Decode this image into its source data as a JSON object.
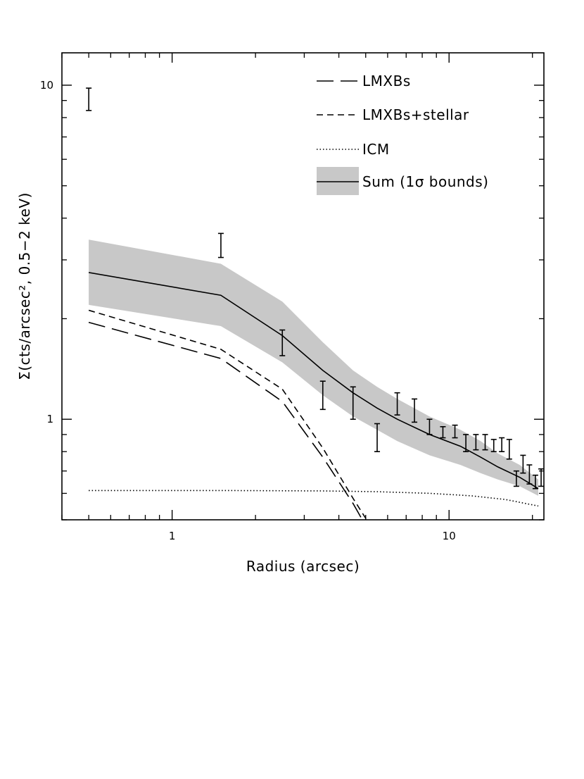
{
  "chart_data": {
    "type": "line",
    "xlabel": "Radius (arcsec)",
    "ylabel": "Σ(cts/arcsec², 0.5−2 keV)",
    "xscale": "log",
    "yscale": "log",
    "xlim": [
      0.4,
      22
    ],
    "ylim": [
      0.5,
      12.5
    ],
    "x_ticks": [
      {
        "value": 1,
        "label": "1"
      },
      {
        "value": 10,
        "label": "10"
      }
    ],
    "y_ticks": [
      {
        "value": 1,
        "label": "1"
      },
      {
        "value": 10,
        "label": "10"
      }
    ],
    "legend_position": "top-right",
    "series": [
      {
        "name": "LMXBs",
        "style": "long-dash",
        "x": [
          0.5,
          1.5,
          2.5,
          3.5,
          4.5,
          5.0
        ],
        "y": [
          1.95,
          1.52,
          1.13,
          0.77,
          0.56,
          0.48
        ]
      },
      {
        "name": "LMXBs+stellar",
        "style": "short-dash",
        "x": [
          0.5,
          1.5,
          2.5,
          3.5,
          4.5,
          5.2
        ],
        "y": [
          2.12,
          1.62,
          1.23,
          0.82,
          0.58,
          0.48
        ]
      },
      {
        "name": "ICM",
        "style": "dotted",
        "x": [
          0.5,
          1.5,
          3.5,
          5.5,
          8.5,
          12,
          16,
          21
        ],
        "y": [
          0.612,
          0.612,
          0.61,
          0.607,
          0.6,
          0.59,
          0.575,
          0.55
        ]
      },
      {
        "name": "Sum (1σ bounds)",
        "style": "solid",
        "x": [
          0.5,
          1.5,
          2.5,
          3.5,
          4.5,
          5.5,
          6.5,
          8.5,
          11,
          13,
          15,
          18,
          21
        ],
        "y": [
          2.75,
          2.35,
          1.78,
          1.4,
          1.2,
          1.08,
          1.0,
          0.9,
          0.83,
          0.77,
          0.72,
          0.67,
          0.62
        ],
        "band_lower": [
          2.2,
          1.9,
          1.48,
          1.18,
          1.02,
          0.93,
          0.86,
          0.78,
          0.73,
          0.69,
          0.66,
          0.63,
          0.59
        ],
        "band_upper": [
          3.45,
          2.92,
          2.25,
          1.7,
          1.4,
          1.25,
          1.15,
          1.02,
          0.93,
          0.86,
          0.79,
          0.73,
          0.66
        ]
      }
    ],
    "data_points": {
      "x": [
        0.5,
        1.5,
        2.5,
        3.5,
        4.5,
        5.5,
        6.5,
        7.5,
        8.5,
        9.5,
        10.5,
        11.5,
        12.5,
        13.5,
        14.5,
        15.5,
        16.5,
        17.5,
        18.5,
        19.5,
        20.5,
        21.5
      ],
      "y_low": [
        8.4,
        3.05,
        1.55,
        1.07,
        1.0,
        0.8,
        1.03,
        0.98,
        0.9,
        0.88,
        0.88,
        0.8,
        0.81,
        0.81,
        0.8,
        0.8,
        0.76,
        0.63,
        0.69,
        0.64,
        0.62,
        0.63
      ],
      "y_high": [
        9.8,
        3.6,
        1.85,
        1.3,
        1.25,
        0.97,
        1.2,
        1.15,
        1.0,
        0.95,
        0.96,
        0.9,
        0.9,
        0.9,
        0.87,
        0.88,
        0.87,
        0.7,
        0.78,
        0.73,
        0.68,
        0.71
      ]
    },
    "legend": [
      {
        "label": "LMXBs",
        "style": "long-dash"
      },
      {
        "label": "LMXBs+stellar",
        "style": "short-dash"
      },
      {
        "label": "ICM",
        "style": "dotted"
      },
      {
        "label": "Sum (1σ bounds)",
        "style": "band"
      }
    ],
    "colors": {
      "band": "#c8c8c8",
      "line": "#000000",
      "background": "#ffffff"
    }
  }
}
